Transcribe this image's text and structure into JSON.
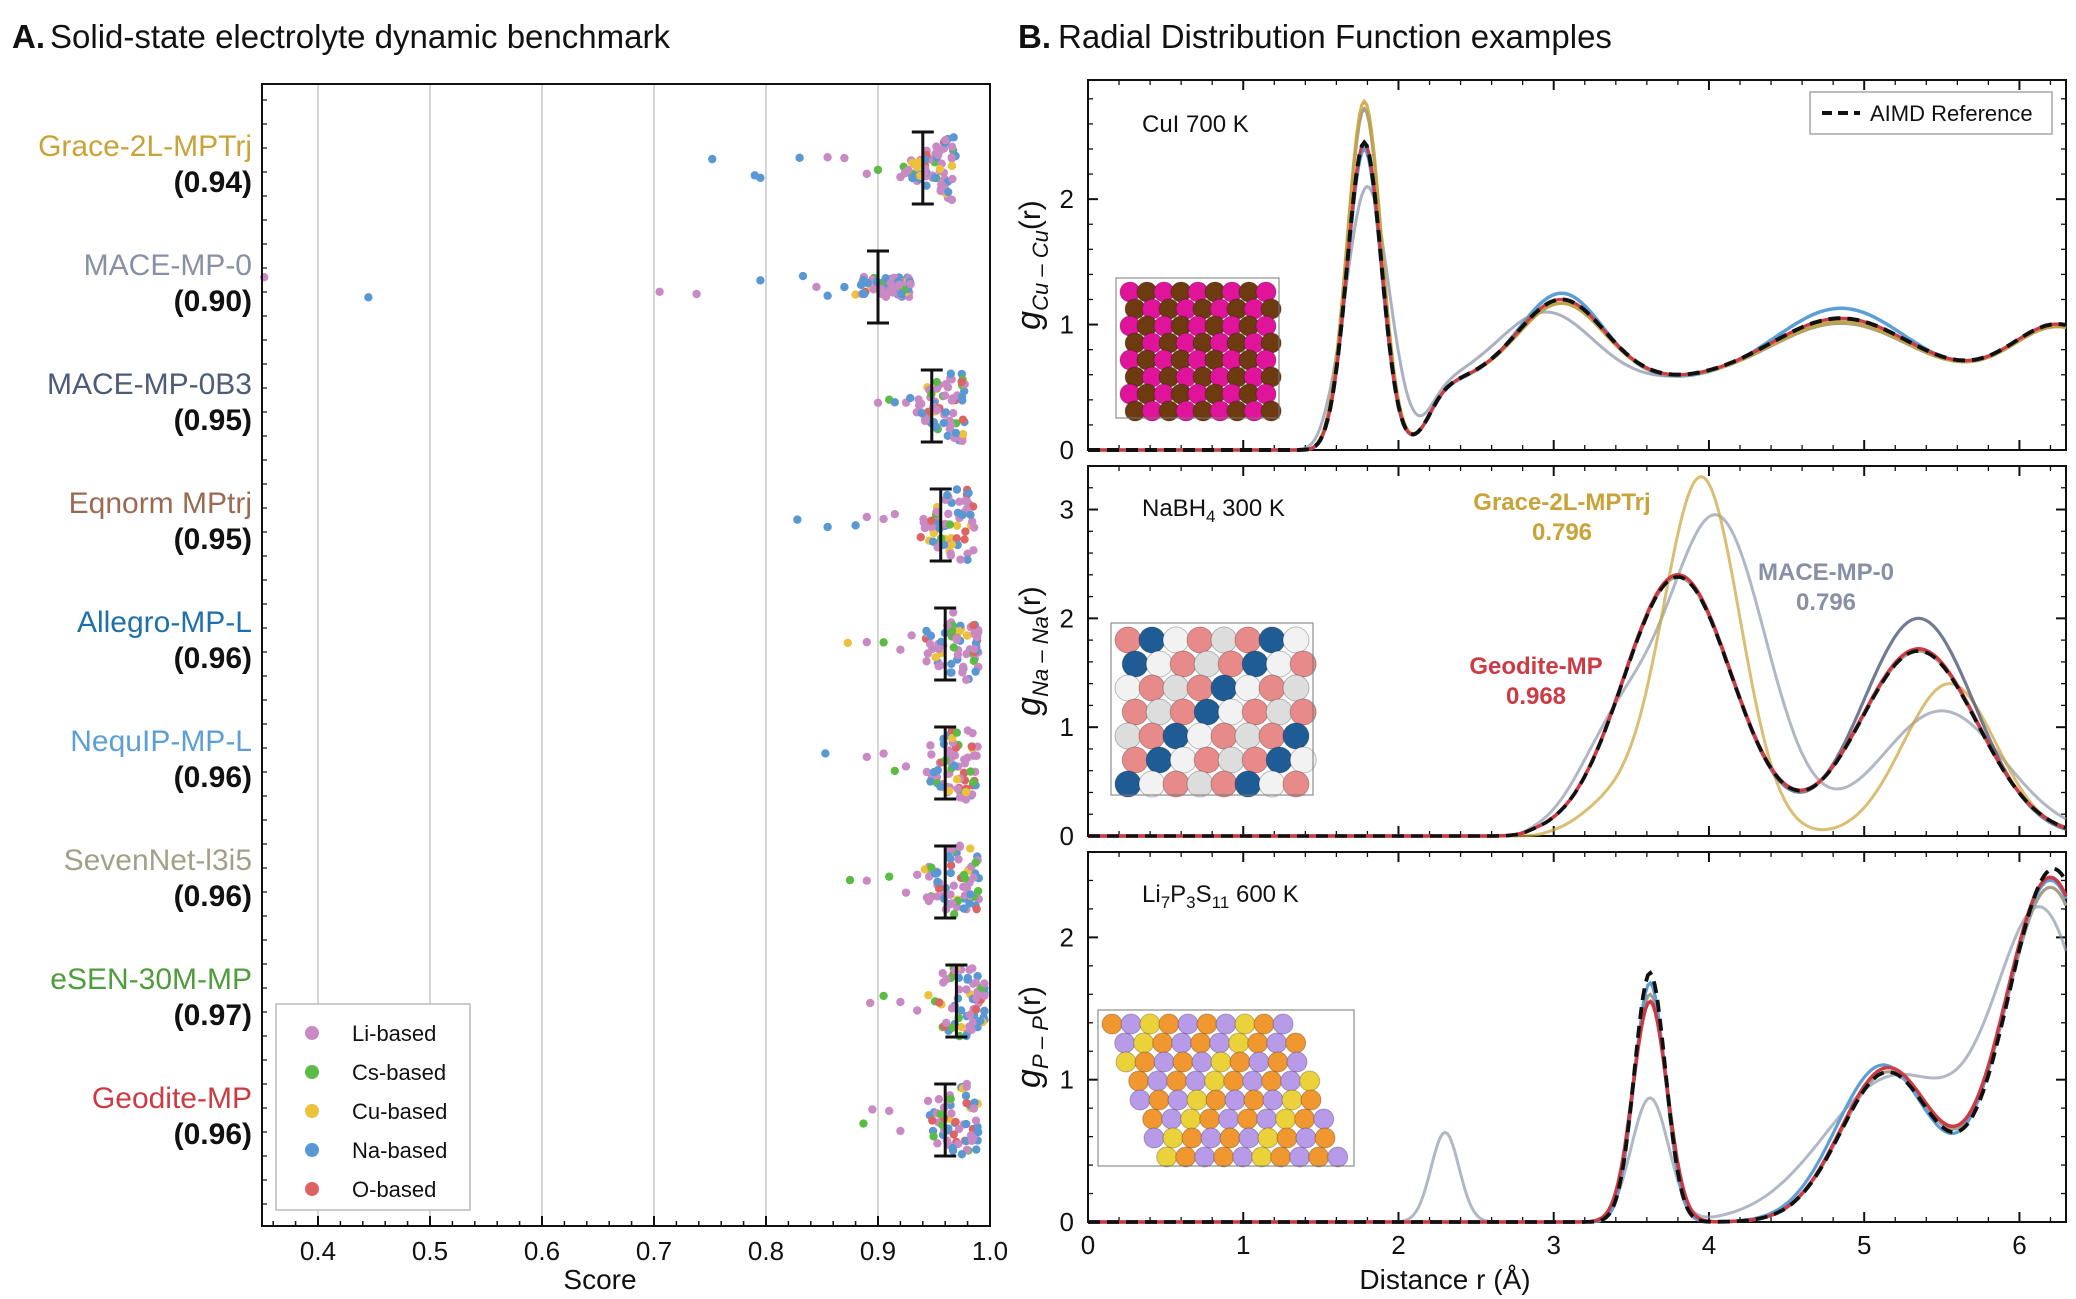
{
  "panel_a": {
    "letter": "A.",
    "title": "Solid-state electrolyte dynamic benchmark",
    "xlabel": "Score"
  },
  "panel_b": {
    "letter": "B.",
    "title": "Radial Distribution Function examples",
    "xlabel": "Distance r (Å)"
  },
  "colors": {
    "grace": "#c9a238",
    "mace": "#8890a6",
    "mace0b3": "#4d5a78",
    "eqnorm": "#9c6a52",
    "allegro": "#1f6fab",
    "nequip": "#5c9fd6",
    "sevennet": "#a3a08a",
    "esen": "#4f9c3c",
    "geodite": "#cc3b44",
    "li": "#c98ac4",
    "cs": "#5cbb45",
    "cu": "#ecc23c",
    "na": "#5a98d4",
    "o": "#dd6462",
    "aimd": "#111111",
    "grid": "#bbbbbb"
  },
  "chart_data": [
    {
      "type": "scatter",
      "subtype": "swarm",
      "title": "Solid-state electrolyte dynamic benchmark",
      "xlabel": "Score",
      "xlim": [
        0.35,
        1.0
      ],
      "xticks": [
        "0.4",
        "0.5",
        "0.6",
        "0.7",
        "0.8",
        "0.9",
        "1.0"
      ],
      "grid": "vertical",
      "legend_position": "bottom-left",
      "legend": [
        {
          "label": "Li-based",
          "color_key": "li"
        },
        {
          "label": "Cs-based",
          "color_key": "cs"
        },
        {
          "label": "Cu-based",
          "color_key": "cu"
        },
        {
          "label": "Na-based",
          "color_key": "na"
        },
        {
          "label": "O-based",
          "color_key": "o"
        }
      ],
      "models": [
        {
          "name": "Grace-2L-MPTrj",
          "score_label": "(0.94)",
          "mean": 0.94,
          "err": 0.017,
          "color_key": "grace",
          "outliers": [
            [
              0.752,
              "na"
            ],
            [
              0.79,
              "na"
            ],
            [
              0.795,
              "na"
            ],
            [
              0.83,
              "na"
            ],
            [
              0.855,
              "li"
            ],
            [
              0.87,
              "li"
            ],
            [
              0.89,
              "li"
            ],
            [
              0.9,
              "cs"
            ],
            [
              0.92,
              "li"
            ],
            [
              0.93,
              "li"
            ]
          ]
        },
        {
          "name": "MACE-MP-0",
          "score_label": "(0.90)",
          "mean": 0.9,
          "err": 0.028,
          "color_key": "mace",
          "outliers": [
            [
              0.352,
              "li"
            ],
            [
              0.445,
              "na"
            ],
            [
              0.705,
              "li"
            ],
            [
              0.738,
              "li"
            ],
            [
              0.795,
              "na"
            ],
            [
              0.833,
              "na"
            ],
            [
              0.845,
              "li"
            ],
            [
              0.855,
              "na"
            ],
            [
              0.87,
              "na"
            ],
            [
              0.88,
              "cu"
            ],
            [
              0.89,
              "li"
            ],
            [
              0.905,
              "cs"
            ]
          ]
        },
        {
          "name": "MACE-MP-0B3",
          "score_label": "(0.95)",
          "mean": 0.948,
          "err": 0.026,
          "color_key": "mace0b3",
          "outliers": [
            [
              0.9,
              "li"
            ],
            [
              0.91,
              "cs"
            ],
            [
              0.915,
              "na"
            ],
            [
              0.925,
              "li"
            ]
          ]
        },
        {
          "name": "Eqnorm MPtrj",
          "score_label": "(0.95)",
          "mean": 0.956,
          "err": 0.028,
          "color_key": "eqnorm",
          "outliers": [
            [
              0.828,
              "na"
            ],
            [
              0.855,
              "na"
            ],
            [
              0.88,
              "na"
            ],
            [
              0.89,
              "li"
            ],
            [
              0.905,
              "li"
            ],
            [
              0.915,
              "li"
            ]
          ]
        },
        {
          "name": "Allegro-MP-L",
          "score_label": "(0.96)",
          "mean": 0.96,
          "err": 0.025,
          "color_key": "allegro",
          "outliers": [
            [
              0.873,
              "cu"
            ],
            [
              0.89,
              "li"
            ],
            [
              0.905,
              "cs"
            ],
            [
              0.92,
              "li"
            ],
            [
              0.93,
              "li"
            ]
          ]
        },
        {
          "name": "NequIP-MP-L",
          "score_label": "(0.96)",
          "mean": 0.96,
          "err": 0.026,
          "color_key": "nequip",
          "outliers": [
            [
              0.853,
              "na"
            ],
            [
              0.89,
              "li"
            ],
            [
              0.905,
              "li"
            ],
            [
              0.915,
              "cs"
            ],
            [
              0.925,
              "li"
            ]
          ]
        },
        {
          "name": "SevenNet-l3i5",
          "score_label": "(0.96)",
          "mean": 0.96,
          "err": 0.026,
          "color_key": "sevennet",
          "outliers": [
            [
              0.875,
              "cs"
            ],
            [
              0.89,
              "li"
            ],
            [
              0.91,
              "cs"
            ],
            [
              0.925,
              "li"
            ],
            [
              0.935,
              "li"
            ]
          ]
        },
        {
          "name": "eSEN-30M-MP",
          "score_label": "(0.97)",
          "mean": 0.97,
          "err": 0.024,
          "color_key": "esen",
          "outliers": [
            [
              0.893,
              "li"
            ],
            [
              0.905,
              "cs"
            ],
            [
              0.92,
              "li"
            ],
            [
              0.935,
              "li"
            ],
            [
              0.945,
              "cu"
            ]
          ]
        },
        {
          "name": "Geodite-MP",
          "score_label": "(0.96)",
          "mean": 0.96,
          "err": 0.025,
          "color_key": "geodite",
          "outliers": [
            [
              0.887,
              "cs"
            ],
            [
              0.895,
              "li"
            ],
            [
              0.91,
              "li"
            ],
            [
              0.92,
              "li"
            ]
          ]
        }
      ]
    },
    {
      "type": "line",
      "subplot": "CuI",
      "title_text": "CuI 700 K",
      "ylabel_main": "g",
      "ylabel_sub": "Cu – Cu",
      "ylabel_tail": "(r)",
      "xlim": [
        0,
        6.3
      ],
      "ylim": [
        0,
        2.95
      ],
      "yticks": [
        "0",
        "1",
        "2"
      ],
      "legend": [
        {
          "label": "AIMD Reference",
          "style": "dashed",
          "color_key": "aimd"
        }
      ],
      "series_peaks": {
        "base": [
          [
            1.78,
            2.45,
            0.11
          ],
          [
            3.05,
            0.65,
            0.28
          ],
          [
            4.85,
            0.5,
            0.45
          ],
          [
            6.25,
            0.45,
            0.3
          ]
        ],
        "grace": [
          [
            1.78,
            2.78,
            0.11
          ],
          [
            3.05,
            0.62,
            0.28
          ],
          [
            4.85,
            0.47,
            0.45
          ],
          [
            6.25,
            0.43,
            0.3
          ]
        ],
        "mace": [
          [
            1.8,
            2.1,
            0.14
          ],
          [
            2.95,
            0.55,
            0.3
          ],
          [
            4.85,
            0.48,
            0.45
          ],
          [
            6.25,
            0.43,
            0.3
          ]
        ],
        "sevennet": [
          [
            1.78,
            2.72,
            0.11
          ],
          [
            3.05,
            0.62,
            0.28
          ],
          [
            4.85,
            0.46,
            0.45
          ],
          [
            6.25,
            0.43,
            0.3
          ]
        ],
        "nequip": [
          [
            1.78,
            2.4,
            0.11
          ],
          [
            3.05,
            0.7,
            0.27
          ],
          [
            4.85,
            0.58,
            0.42
          ],
          [
            6.25,
            0.45,
            0.3
          ]
        ]
      },
      "baseline": 0.55
    },
    {
      "type": "line",
      "subplot": "NaBH4",
      "title_main": "NaBH",
      "title_sub": "4",
      "title_tail": " 300 K",
      "ylabel_main": "g",
      "ylabel_sub": "Na – Na",
      "ylabel_tail": "(r)",
      "xlim": [
        0,
        6.3
      ],
      "ylim": [
        0,
        3.4
      ],
      "yticks": [
        "0",
        "1",
        "2",
        "3"
      ],
      "annotations": [
        {
          "text": "Grace-2L-MPTrj",
          "color_key": "grace"
        },
        {
          "text": "0.796",
          "color_key": "grace"
        },
        {
          "text": "MACE-MP-0",
          "color_key": "mace"
        },
        {
          "text": "0.796",
          "color_key": "mace"
        },
        {
          "text": "Geodite-MP",
          "color_key": "geodite"
        },
        {
          "text": "0.968",
          "color_key": "geodite"
        }
      ],
      "series_peaks": {
        "aimd": [
          [
            3.8,
            2.38,
            0.35
          ],
          [
            5.35,
            1.7,
            0.38
          ]
        ],
        "geodite": [
          [
            3.8,
            2.4,
            0.35
          ],
          [
            5.35,
            1.72,
            0.38
          ]
        ],
        "grace": [
          [
            3.95,
            3.3,
            0.25
          ],
          [
            5.55,
            1.4,
            0.3
          ],
          [
            3.35,
            0.25,
            0.2
          ]
        ],
        "mace": [
          [
            4.05,
            2.92,
            0.32
          ],
          [
            5.5,
            1.15,
            0.4
          ],
          [
            3.4,
            0.85,
            0.25
          ]
        ],
        "mace2": [
          [
            3.8,
            2.38,
            0.35
          ],
          [
            5.35,
            2.0,
            0.36
          ]
        ]
      }
    },
    {
      "type": "line",
      "subplot": "Li7P3S11",
      "title_parts": [
        "Li",
        "7",
        "P",
        "3",
        "S",
        "11",
        " 600 K"
      ],
      "ylabel_main": "g",
      "ylabel_sub": "P – P",
      "ylabel_tail": "(r)",
      "xlim": [
        0,
        6.3
      ],
      "xticks": [
        "0",
        "1",
        "2",
        "3",
        "4",
        "5",
        "6"
      ],
      "ylim": [
        0,
        2.6
      ],
      "yticks": [
        "0",
        "1",
        "2"
      ],
      "series_peaks": {
        "aimd": [
          [
            3.62,
            1.75,
            0.1
          ],
          [
            5.15,
            1.05,
            0.3
          ],
          [
            6.22,
            2.48,
            0.3
          ]
        ],
        "geodite": [
          [
            3.62,
            1.55,
            0.11
          ],
          [
            5.15,
            1.08,
            0.3
          ],
          [
            6.2,
            2.42,
            0.3
          ]
        ],
        "nequip": [
          [
            3.62,
            1.68,
            0.1
          ],
          [
            5.12,
            1.1,
            0.3
          ],
          [
            6.2,
            2.4,
            0.3
          ]
        ],
        "mace": [
          [
            2.3,
            0.63,
            0.09
          ],
          [
            3.62,
            0.87,
            0.12
          ],
          [
            5.2,
            1.02,
            0.45
          ],
          [
            6.15,
            2.1,
            0.3
          ]
        ],
        "sevennet": [
          [
            3.62,
            1.6,
            0.11
          ],
          [
            5.15,
            1.05,
            0.3
          ],
          [
            6.2,
            2.35,
            0.3
          ]
        ]
      }
    }
  ]
}
